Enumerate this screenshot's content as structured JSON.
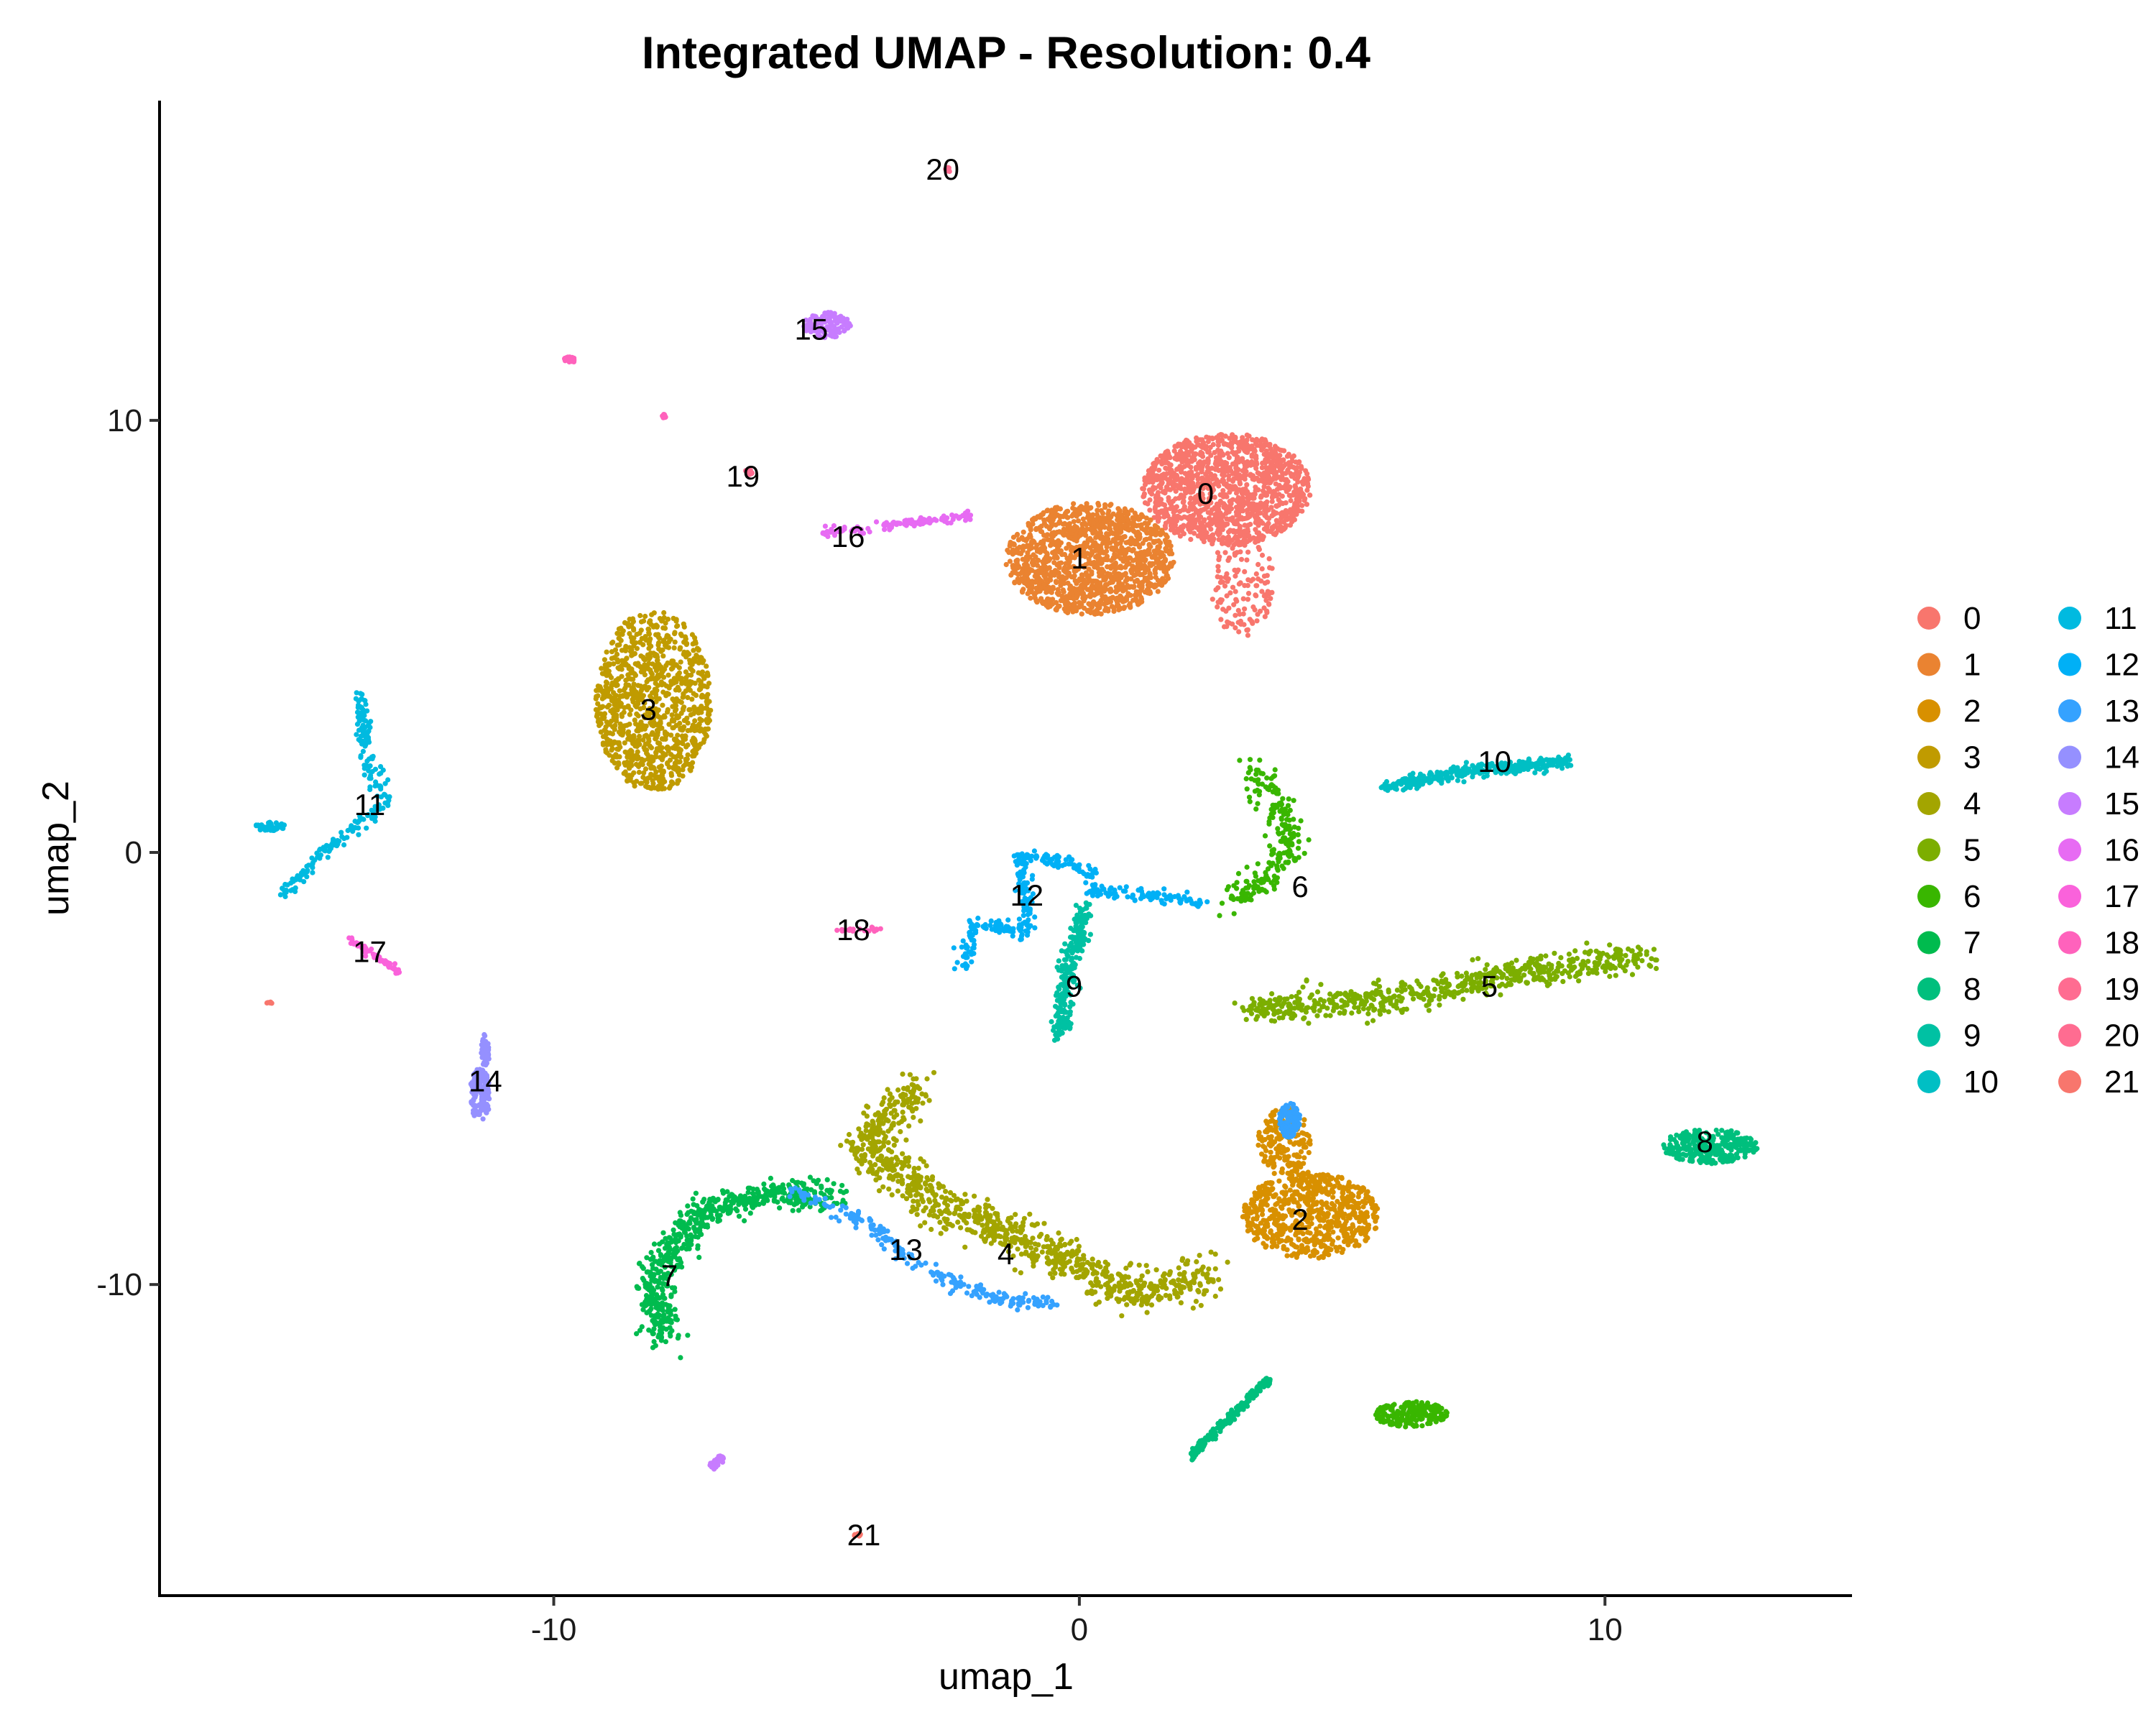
{
  "chart_data": {
    "type": "scatter",
    "title": "Integrated UMAP - Resolution: 0.4",
    "xlabel": "umap_1",
    "ylabel": "umap_2",
    "xlim": [
      -17.5,
      14.7
    ],
    "ylim": [
      -17.2,
      17.4
    ],
    "x_ticks": [
      -10,
      0,
      10
    ],
    "y_ticks": [
      -10,
      0,
      10
    ],
    "grid": false,
    "legend_position": "right",
    "legend_columns": 2,
    "clusters": [
      {
        "name": "0",
        "color": "#F8766D",
        "label_pos": [
          2.4,
          8.3
        ],
        "points": 1400,
        "blobs": [
          [
            2.8,
            8.4,
            1.6,
            1.3,
            0.9
          ],
          [
            3.1,
            6.2,
            0.6,
            1.2,
            0.1
          ]
        ]
      },
      {
        "name": "1",
        "color": "#EA8331",
        "label_pos": [
          0.0,
          6.8
        ],
        "points": 1300,
        "blobs": [
          [
            0.2,
            6.8,
            1.6,
            1.3,
            1.0
          ]
        ]
      },
      {
        "name": "2",
        "color": "#D89000",
        "label_pos": [
          4.2,
          -8.5
        ],
        "points": 850,
        "blobs": [
          [
            4.4,
            -8.4,
            1.3,
            1.0,
            0.8
          ],
          [
            3.9,
            -6.7,
            0.5,
            0.8,
            0.2
          ]
        ]
      },
      {
        "name": "3",
        "color": "#C09B00",
        "label_pos": [
          -8.2,
          3.3
        ],
        "points": 1000,
        "blobs": [
          [
            -8.1,
            3.5,
            1.1,
            2.1,
            1.0
          ]
        ]
      },
      {
        "name": "4",
        "color": "#A3A500",
        "label_pos": [
          -1.4,
          -9.3
        ],
        "points": 950,
        "path": [
          [
            -3.1,
            -5.4
          ],
          [
            -4.1,
            -6.8
          ],
          [
            -2.6,
            -8.2
          ],
          [
            -0.6,
            -9.2
          ],
          [
            0.9,
            -10.2
          ],
          [
            2.4,
            -9.8
          ]
        ],
        "width": 0.45
      },
      {
        "name": "5",
        "color": "#7CAE00",
        "label_pos": [
          7.8,
          -3.1
        ],
        "points": 650,
        "path": [
          [
            3.2,
            -3.6
          ],
          [
            6.0,
            -3.4
          ],
          [
            8.3,
            -2.8
          ],
          [
            10.8,
            -2.4
          ]
        ],
        "width": 0.35
      },
      {
        "name": "6",
        "color": "#39B600",
        "label_pos": [
          4.2,
          -0.8
        ],
        "points": 420,
        "path": [
          [
            3.3,
            2.0
          ],
          [
            3.8,
            1.0
          ],
          [
            4.0,
            0.2
          ],
          [
            3.6,
            -0.6
          ],
          [
            2.9,
            -1.1
          ]
        ],
        "width": 0.3,
        "blobs": [
          [
            6.3,
            -13.0,
            0.7,
            0.3,
            0.5
          ]
        ]
      },
      {
        "name": "7",
        "color": "#00BB4E",
        "label_pos": [
          -7.8,
          -9.8
        ],
        "points": 600,
        "path": [
          [
            -4.6,
            -7.9
          ],
          [
            -6.0,
            -7.9
          ],
          [
            -7.2,
            -8.3
          ],
          [
            -8.1,
            -9.8
          ],
          [
            -7.9,
            -11.3
          ]
        ],
        "width": 0.35
      },
      {
        "name": "8",
        "color": "#00BF7D",
        "label_pos": [
          11.9,
          -6.7
        ],
        "points": 480,
        "blobs": [
          [
            12.0,
            -6.8,
            0.9,
            0.4,
            1.0
          ]
        ],
        "path": [
          [
            2.1,
            -14.0
          ],
          [
            3.6,
            -12.2
          ]
        ],
        "width": 0.08
      },
      {
        "name": "9",
        "color": "#00C1A3",
        "label_pos": [
          -0.1,
          -3.1
        ],
        "points": 260,
        "path": [
          [
            0.1,
            -1.2
          ],
          [
            -0.2,
            -2.8
          ],
          [
            -0.4,
            -4.3
          ]
        ],
        "width": 0.18
      },
      {
        "name": "10",
        "color": "#00BFC4",
        "label_pos": [
          7.9,
          2.1
        ],
        "points": 320,
        "path": [
          [
            5.8,
            1.5
          ],
          [
            7.5,
            1.9
          ],
          [
            9.3,
            2.1
          ]
        ],
        "width": 0.15
      },
      {
        "name": "11",
        "color": "#00BAE0",
        "label_pos": [
          -13.5,
          1.1
        ],
        "points": 260,
        "path": [
          [
            -13.7,
            3.7
          ],
          [
            -13.5,
            2.0
          ],
          [
            -13.2,
            1.1
          ],
          [
            -14.3,
            0.1
          ],
          [
            -15.2,
            -1.0
          ]
        ],
        "width": 0.15,
        "blobs": [
          [
            -15.4,
            0.6,
            0.3,
            0.1,
            0.1
          ]
        ]
      },
      {
        "name": "12",
        "color": "#00B0F6",
        "label_pos": [
          -1.0,
          -1.0
        ],
        "points": 340,
        "path": [
          [
            -2.2,
            -2.8
          ],
          [
            -2.0,
            -1.6
          ],
          [
            -1.0,
            -1.9
          ],
          [
            -1.1,
            0.0
          ],
          [
            0.2,
            -0.4
          ],
          [
            0.2,
            -0.9
          ],
          [
            2.4,
            -1.1
          ]
        ],
        "width": 0.15
      },
      {
        "name": "13",
        "color": "#35A2FF",
        "label_pos": [
          -3.3,
          -9.2
        ],
        "points": 320,
        "path": [
          [
            -5.5,
            -7.8
          ],
          [
            -4.0,
            -8.6
          ],
          [
            -3.1,
            -9.6
          ],
          [
            -1.6,
            -10.3
          ],
          [
            -0.5,
            -10.5
          ]
        ],
        "width": 0.18,
        "blobs": [
          [
            4.0,
            -6.2,
            0.2,
            0.4,
            0.3
          ]
        ]
      },
      {
        "name": "14",
        "color": "#9590FF",
        "label_pos": [
          -11.3,
          -5.3
        ],
        "points": 200,
        "blobs": [
          [
            -11.4,
            -5.6,
            0.2,
            0.6,
            1.0
          ],
          [
            -11.3,
            -4.6,
            0.08,
            0.4,
            0.4
          ]
        ]
      },
      {
        "name": "15",
        "color": "#C77CFF",
        "label_pos": [
          -5.1,
          12.1
        ],
        "points": 180,
        "blobs": [
          [
            -4.8,
            12.2,
            0.45,
            0.3,
            1.0
          ]
        ],
        "path": [
          [
            -7.0,
            -14.2
          ],
          [
            -6.8,
            -14.0
          ]
        ],
        "width": 0.06
      },
      {
        "name": "16",
        "color": "#E76BF3",
        "label_pos": [
          -4.4,
          7.3
        ],
        "points": 120,
        "path": [
          [
            -4.9,
            7.4
          ],
          [
            -3.4,
            7.6
          ],
          [
            -2.1,
            7.8
          ]
        ],
        "width": 0.1
      },
      {
        "name": "17",
        "color": "#FA62DB",
        "label_pos": [
          -13.5,
          -2.3
        ],
        "points": 60,
        "path": [
          [
            -13.9,
            -2.0
          ],
          [
            -12.9,
            -2.8
          ]
        ],
        "width": 0.06
      },
      {
        "name": "18",
        "color": "#FF62BC",
        "label_pos": [
          -4.3,
          -1.8
        ],
        "points": 60,
        "blobs": [
          [
            -9.7,
            11.4,
            0.1,
            0.08,
            1.0
          ],
          [
            -7.9,
            10.1,
            0.05,
            0.05,
            0.3
          ]
        ],
        "path": [
          [
            -4.6,
            -1.8
          ],
          [
            -3.8,
            -1.8
          ]
        ],
        "width": 0.05
      },
      {
        "name": "19",
        "color": "#FF6C91",
        "label_pos": [
          -6.4,
          8.7
        ],
        "points": 30,
        "blobs": [
          [
            -6.3,
            8.8,
            0.08,
            0.06,
            1.0
          ]
        ]
      },
      {
        "name": "20",
        "color": "#FF6C91",
        "label_pos": [
          -2.6,
          15.8
        ],
        "points": 10,
        "blobs": [
          [
            -2.5,
            15.8,
            0.05,
            0.05,
            1.0
          ]
        ]
      },
      {
        "name": "21",
        "color": "#F8766D",
        "label_pos": [
          -4.1,
          -15.8
        ],
        "points": 20,
        "blobs": [
          [
            -4.2,
            -15.8,
            0.08,
            0.05,
            0.6
          ],
          [
            -15.4,
            -3.5,
            0.06,
            0.05,
            0.4
          ]
        ]
      }
    ]
  }
}
